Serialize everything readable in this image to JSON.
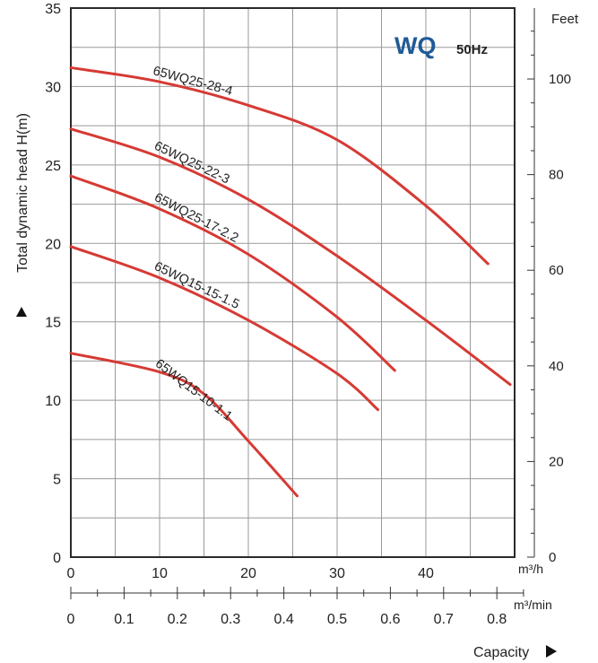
{
  "chart_data": {
    "type": "line",
    "brand": "WQ",
    "frequency": "50Hz",
    "ylabel": "Total dynamic head H(m)",
    "y2label": "Feet",
    "xlabel_top_unit": "m³/h",
    "xlabel_bottom_unit": "m³/min",
    "xlabel": "Capacity",
    "x_ticks": [
      "0",
      "10",
      "20",
      "30",
      "40"
    ],
    "x2_ticks": [
      "0",
      "0.1",
      "0.2",
      "0.3",
      "0.4",
      "0.5",
      "0.6",
      "0.7",
      "0.8"
    ],
    "y_ticks": [
      "0",
      "5",
      "10",
      "15",
      "20",
      "25",
      "30",
      "35"
    ],
    "y2_ticks": [
      "0",
      "20",
      "40",
      "60",
      "80",
      "100"
    ],
    "xlim": [
      0,
      50
    ],
    "ylim": [
      0,
      35
    ],
    "grid": true,
    "line_color": "#d63a34",
    "brand_color": "#1f5a96",
    "series": [
      {
        "name": "65WQ25-28-4",
        "x": [
          0,
          10,
          20,
          30,
          40,
          47
        ],
        "y": [
          31.2,
          30.3,
          28.8,
          26.6,
          22.4,
          18.7
        ]
      },
      {
        "name": "65WQ25-22-3",
        "x": [
          0,
          10,
          20,
          30,
          40,
          49.5
        ],
        "y": [
          27.3,
          25.5,
          22.8,
          19.2,
          15.1,
          11.0
        ]
      },
      {
        "name": "65WQ25-17-2.2",
        "x": [
          0,
          10,
          20,
          30,
          36.5
        ],
        "y": [
          24.3,
          22.2,
          19.3,
          15.3,
          11.9
        ]
      },
      {
        "name": "65WQ15-15-1.5",
        "x": [
          0,
          10,
          20,
          30,
          34.6
        ],
        "y": [
          19.8,
          17.8,
          15.1,
          11.7,
          9.4
        ]
      },
      {
        "name": "65WQ15-10-1.1",
        "x": [
          0,
          10,
          15,
          20,
          25.5
        ],
        "y": [
          13.0,
          11.8,
          10.4,
          7.4,
          3.9
        ]
      }
    ]
  }
}
